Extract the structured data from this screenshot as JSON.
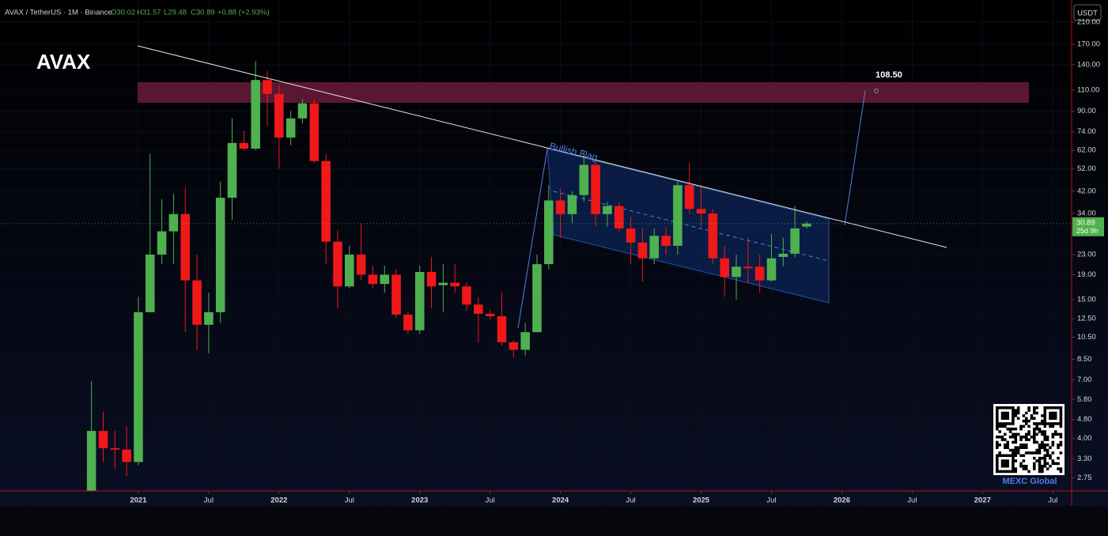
{
  "chart_data": {
    "type": "candlestick",
    "title": "AVAX",
    "legend": {
      "symbol": "AVAX / TetherUS · 1M · Binance",
      "open": "O30.02",
      "high": "H31.57",
      "low": "L29.48",
      "close": "C30.89",
      "change": "+0.88 (+2.93%)"
    },
    "currency": "USDT",
    "countdown": "25d 9h",
    "annotations": {
      "target": "108.50",
      "pattern": "Bullish Flag"
    },
    "watermark": "MEXC Global",
    "log_scale": true,
    "up_color": "#4fb04f",
    "down_color": "#f01818",
    "open": [
      2.2,
      4.3,
      3.65,
      3.6,
      3.2,
      13.3,
      23,
      28.7,
      33.8,
      18,
      11.8,
      13.3,
      39.5,
      66.5,
      63,
      121,
      106,
      70,
      84,
      97,
      56,
      26,
      17,
      23,
      19,
      17.4,
      19,
      13,
      11.2,
      19.5,
      17.2,
      17.6,
      17,
      14.3,
      13.1,
      12.8,
      10,
      9.3,
      11,
      21,
      38.5,
      33.8,
      40.5,
      54,
      33.8,
      36.5,
      29.5,
      25.8,
      22.2,
      27.5,
      25,
      44.5,
      35.5,
      34,
      22.2,
      18.6,
      20.5,
      20.5,
      18,
      22.5,
      23.2,
      30.02
    ],
    "high": [
      6.9,
      5.17,
      4.3,
      4.5,
      15.4,
      60,
      39,
      41,
      43.5,
      23,
      16,
      46,
      84,
      75,
      145,
      132,
      115,
      90,
      101,
      101,
      60,
      29,
      25,
      31,
      20.7,
      20.7,
      20,
      13.3,
      20.7,
      22.5,
      21,
      21,
      17.7,
      15.3,
      13.6,
      16,
      10.2,
      12,
      23,
      44.5,
      43,
      42,
      62,
      55.5,
      38,
      38,
      33,
      29.5,
      29.5,
      30,
      46,
      55,
      44.5,
      35.5,
      25,
      23,
      27,
      23,
      28,
      27,
      36.5,
      31.57
    ],
    "low": [
      2.0,
      3.2,
      3.0,
      2.8,
      3.1,
      15.4,
      21,
      21,
      11,
      9.3,
      9,
      12,
      32,
      62,
      62,
      78,
      52,
      65,
      80,
      55,
      21,
      13.8,
      16.7,
      18,
      16.7,
      16,
      12.6,
      10.8,
      10.8,
      13.8,
      13.3,
      16,
      13.5,
      10,
      12.4,
      9.7,
      8.6,
      8.8,
      11,
      20,
      27,
      31,
      38,
      30,
      30,
      28.6,
      21,
      17.8,
      21,
      23,
      23,
      34,
      30,
      21,
      15.4,
      15,
      17.5,
      16,
      17.8,
      20.6,
      22.5,
      29.48
    ],
    "close": [
      4.3,
      3.65,
      3.6,
      3.2,
      13.3,
      23,
      28.7,
      33.8,
      18,
      11.8,
      13.3,
      39.5,
      66.5,
      63,
      121,
      106,
      70,
      84,
      97,
      56,
      26,
      17,
      23,
      19,
      17.4,
      19,
      13,
      11.2,
      19.5,
      17,
      17.6,
      17,
      14.3,
      13.1,
      12.8,
      10,
      9.3,
      11,
      21,
      38.5,
      33.8,
      40.5,
      54,
      33.8,
      36.5,
      29.5,
      25.8,
      22.2,
      27.5,
      25,
      44.5,
      35.5,
      34,
      22.2,
      18.6,
      20.5,
      20.2,
      18,
      22.2,
      23.2,
      29.5,
      30.89
    ],
    "xlim": [
      -7.8,
      83.6
    ],
    "xticks": [
      {
        "value": 4,
        "label": "2021"
      },
      {
        "value": 10,
        "label": "Jul"
      },
      {
        "value": 16,
        "label": "2022"
      },
      {
        "value": 22,
        "label": "Jul"
      },
      {
        "value": 28,
        "label": "2023"
      },
      {
        "value": 34,
        "label": "Jul"
      },
      {
        "value": 40,
        "label": "2024"
      },
      {
        "value": 46,
        "label": "Jul"
      },
      {
        "value": 52,
        "label": "2025"
      },
      {
        "value": 58,
        "label": "Jul"
      },
      {
        "value": 64,
        "label": "2026"
      },
      {
        "value": 70,
        "label": "Jul"
      },
      {
        "value": 76,
        "label": "2027"
      },
      {
        "value": 82,
        "label": "Jul"
      }
    ],
    "ylim": [
      2.43,
      259
    ],
    "yticks": [
      {
        "value": 2.75,
        "label": "2.75"
      },
      {
        "value": 3.3,
        "label": "3.30"
      },
      {
        "value": 4,
        "label": "4.00"
      },
      {
        "value": 4.8,
        "label": "4.80"
      },
      {
        "value": 5.8,
        "label": "5.80"
      },
      {
        "value": 7,
        "label": "7.00"
      },
      {
        "value": 8.5,
        "label": "8.50"
      },
      {
        "value": 10.5,
        "label": "10.50"
      },
      {
        "value": 12.5,
        "label": "12.50"
      },
      {
        "value": 15,
        "label": "15.00"
      },
      {
        "value": 19,
        "label": "19.00"
      },
      {
        "value": 23,
        "label": "23.00"
      },
      {
        "value": 34,
        "label": "34.00"
      },
      {
        "value": 42,
        "label": "42.00"
      },
      {
        "value": 52,
        "label": "52.00"
      },
      {
        "value": 62,
        "label": "62.00"
      },
      {
        "value": 74,
        "label": "74.00"
      },
      {
        "value": 90,
        "label": "90.00"
      },
      {
        "value": 110,
        "label": "110.00"
      },
      {
        "value": 140,
        "label": "140.00"
      },
      {
        "value": 170,
        "label": "170.00"
      },
      {
        "value": 210,
        "label": "210.00"
      }
    ]
  }
}
